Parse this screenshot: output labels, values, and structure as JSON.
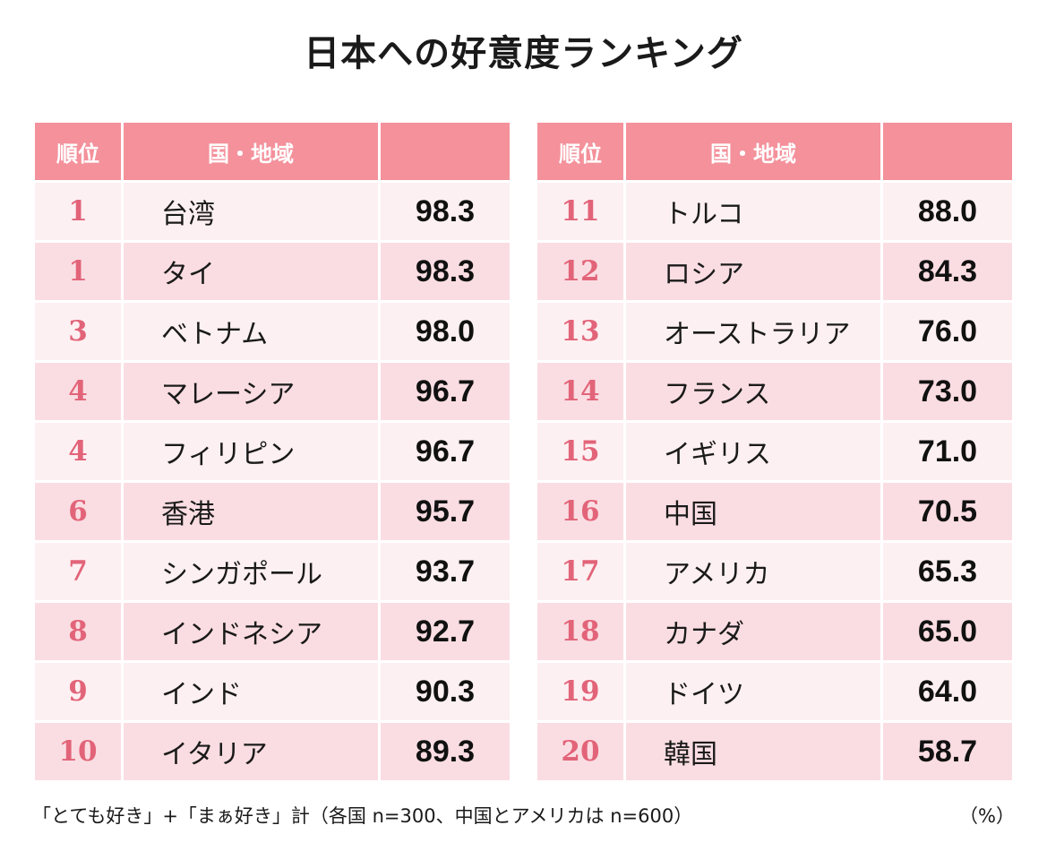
{
  "chart_data": {
    "type": "table",
    "title": "日本への好意度ランキング",
    "columns": [
      "順位",
      "国・地域",
      ""
    ],
    "left_rows": [
      {
        "rank": "1",
        "country": "台湾",
        "value": "98.3"
      },
      {
        "rank": "1",
        "country": "タイ",
        "value": "98.3"
      },
      {
        "rank": "3",
        "country": "ベトナム",
        "value": "98.0"
      },
      {
        "rank": "4",
        "country": "マレーシア",
        "value": "96.7"
      },
      {
        "rank": "4",
        "country": "フィリピン",
        "value": "96.7"
      },
      {
        "rank": "6",
        "country": "香港",
        "value": "95.7"
      },
      {
        "rank": "7",
        "country": "シンガポール",
        "value": "93.7"
      },
      {
        "rank": "8",
        "country": "インドネシア",
        "value": "92.7"
      },
      {
        "rank": "9",
        "country": "インド",
        "value": "90.3"
      },
      {
        "rank": "10",
        "country": "イタリア",
        "value": "89.3"
      }
    ],
    "right_rows": [
      {
        "rank": "11",
        "country": "トルコ",
        "value": "88.0"
      },
      {
        "rank": "12",
        "country": "ロシア",
        "value": "84.3"
      },
      {
        "rank": "13",
        "country": "オーストラリア",
        "value": "76.0"
      },
      {
        "rank": "14",
        "country": "フランス",
        "value": "73.0"
      },
      {
        "rank": "15",
        "country": "イギリス",
        "value": "71.0"
      },
      {
        "rank": "16",
        "country": "中国",
        "value": "70.5"
      },
      {
        "rank": "17",
        "country": "アメリカ",
        "value": "65.3"
      },
      {
        "rank": "18",
        "country": "カナダ",
        "value": "65.0"
      },
      {
        "rank": "19",
        "country": "ドイツ",
        "value": "64.0"
      },
      {
        "rank": "20",
        "country": "韓国",
        "value": "58.7"
      }
    ],
    "note": "「とても好き」+「まぁ好き」計（各国 n=300、中国とアメリカは n=600）",
    "unit": "（%）"
  },
  "colors": {
    "header_bg": "#f4919b",
    "row_light": "#fdf0f2",
    "row_dark": "#fadde2",
    "rank_text": "#e26479"
  }
}
